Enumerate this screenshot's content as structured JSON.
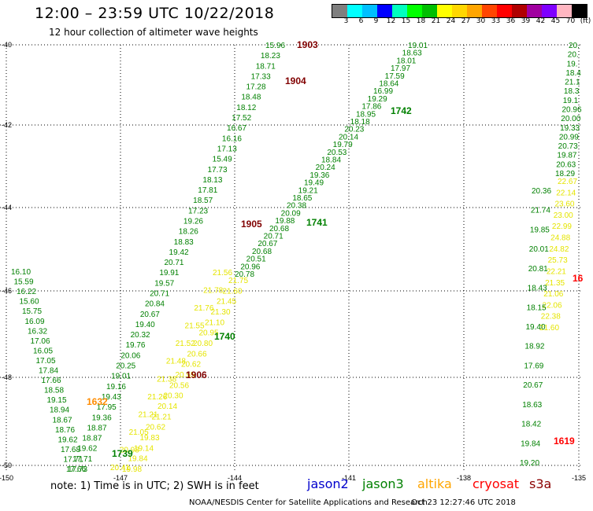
{
  "title": "12:00 – 23:59 UTC 10/22/2018",
  "subtitle": "12 hour collection of altimeter wave heights",
  "legend": {
    "colors": [
      "#7f7f7f",
      "#00ffff",
      "#00bfff",
      "#0000ff",
      "#00ffbf",
      "#00ff00",
      "#00bf00",
      "#ffff00",
      "#ffd700",
      "#ffa500",
      "#ff4500",
      "#ff0000",
      "#b00000",
      "#a000a0",
      "#7f00ff",
      "#ffb6c1",
      "#000000"
    ],
    "labels": [
      "3",
      "6",
      "9",
      "12",
      "15",
      "18",
      "21",
      "24",
      "27",
      "30",
      "33",
      "36",
      "39",
      "42",
      "45",
      "70",
      "(ft)"
    ]
  },
  "axes": {
    "lat_labels": [
      "-40",
      "-42",
      "-44",
      "-46",
      "-48",
      "-50"
    ],
    "lon_labels": [
      "-150",
      "-147",
      "-144",
      "-141",
      "-138",
      "-135"
    ]
  },
  "tracks": [
    {
      "label": "1903",
      "color": "#800000"
    },
    {
      "label": "1904",
      "color": "#800000"
    },
    {
      "label": "1905",
      "color": "#800000"
    },
    {
      "label": "1906",
      "color": "#800000"
    },
    {
      "label": "1742",
      "color": "#008000"
    },
    {
      "label": "1741",
      "color": "#008000"
    },
    {
      "label": "1740",
      "color": "#008000"
    },
    {
      "label": "1739",
      "color": "#008000"
    },
    {
      "label": "1632",
      "color": "#ff8c00"
    },
    {
      "label": "1619",
      "color": "#ff0000"
    },
    {
      "label": "16",
      "color": "#ff0000"
    }
  ],
  "points": {
    "track_a_green": [
      "15.96",
      "18.23",
      "18.71",
      "17.33",
      "17.28",
      "18.48",
      "18.12",
      "17.52",
      "16.67",
      "16.16",
      "17.13",
      "15.49",
      "17.73",
      "18.13",
      "17.81",
      "18.57",
      "17.23",
      "19.26",
      "18.26",
      "18.83",
      "19.42",
      "20.71",
      "19.91",
      "19.57",
      "20.71",
      "20.84",
      "20.67",
      "19.40",
      "20.32",
      "19.76",
      "20.06",
      "20.25",
      "19.01",
      "19.16",
      "19.43",
      "17.95",
      "19.36",
      "18.87",
      "18.87",
      "19.62",
      "17.71",
      "17.73"
    ],
    "track_a_yellow": [
      "21.56",
      "21.78",
      "21.76",
      "21.55",
      "21.52",
      "21.48",
      "21.38",
      "21.26",
      "21.21",
      "21.05",
      "20.98",
      "20.41"
    ],
    "track_b_green": [
      "19.01",
      "18.63",
      "18.01",
      "17.97",
      "17.59",
      "18.64",
      "16.99",
      "19.29",
      "17.86",
      "18.95",
      "18.18",
      "20.23",
      "20.14",
      "19.79",
      "20.53",
      "18.84",
      "20.24",
      "19.36",
      "19.49",
      "19.21",
      "18.65",
      "20.38",
      "20.09",
      "19.88",
      "20.68",
      "20.71",
      "20.67",
      "20.68",
      "20.51",
      "20.96",
      "20.78"
    ],
    "track_b_yellow": [
      "21.75",
      "21.60",
      "21.45",
      "21.30",
      "21.10",
      "20.95",
      "20.80",
      "20.66",
      "20.62",
      "20.55",
      "20.56",
      "20.30",
      "20.14",
      "21.21",
      "20.62",
      "19.83",
      "19.14",
      "19.84",
      "19.98"
    ],
    "track_c_green": [
      "16.10",
      "15.59",
      "16.22",
      "15.60",
      "15.75",
      "16.09",
      "16.32",
      "17.06",
      "16.05",
      "17.05",
      "17.84",
      "17.66",
      "18.58",
      "19.15",
      "18.94",
      "18.67",
      "18.76",
      "19.62",
      "17.68",
      "17.71",
      "17.66"
    ],
    "track_d_green": [
      "20.36",
      "21.74",
      "19.85",
      "20.01",
      "20.81",
      "18.43",
      "18.15",
      "19.40",
      "18.92",
      "17.69",
      "20.67",
      "18.63",
      "18.42",
      "19.84",
      "19.20"
    ],
    "track_d_green_top": [
      "20.",
      "20.",
      "19.",
      "18.4",
      "21.1",
      "18.3",
      "19.1",
      "20.96",
      "20.00",
      "19.33",
      "20.99",
      "20.73",
      "19.87",
      "20.63",
      "18.29"
    ],
    "track_d_yellow": [
      "22.67",
      "22.14",
      "23.60",
      "23.00",
      "22.99",
      "24.88",
      "24.82",
      "25.73",
      "22.21",
      "21.35",
      "21.06",
      "22.06",
      "22.38",
      "21.60"
    ]
  },
  "footer": {
    "note": "note: 1) Time is in UTC; 2) SWH is in feet",
    "satellites": [
      {
        "name": "jason2",
        "color": "#0000cd"
      },
      {
        "name": "jason3",
        "color": "#008000"
      },
      {
        "name": "altika",
        "color": "#ffa500"
      },
      {
        "name": "cryosat",
        "color": "#ff0000"
      },
      {
        "name": "s3a",
        "color": "#8b0000"
      }
    ],
    "credit": "NOAA/NESDIS Center for Satellite Applications and Research",
    "timestamp": "Oct 23 12:27:46 UTC 2018"
  }
}
